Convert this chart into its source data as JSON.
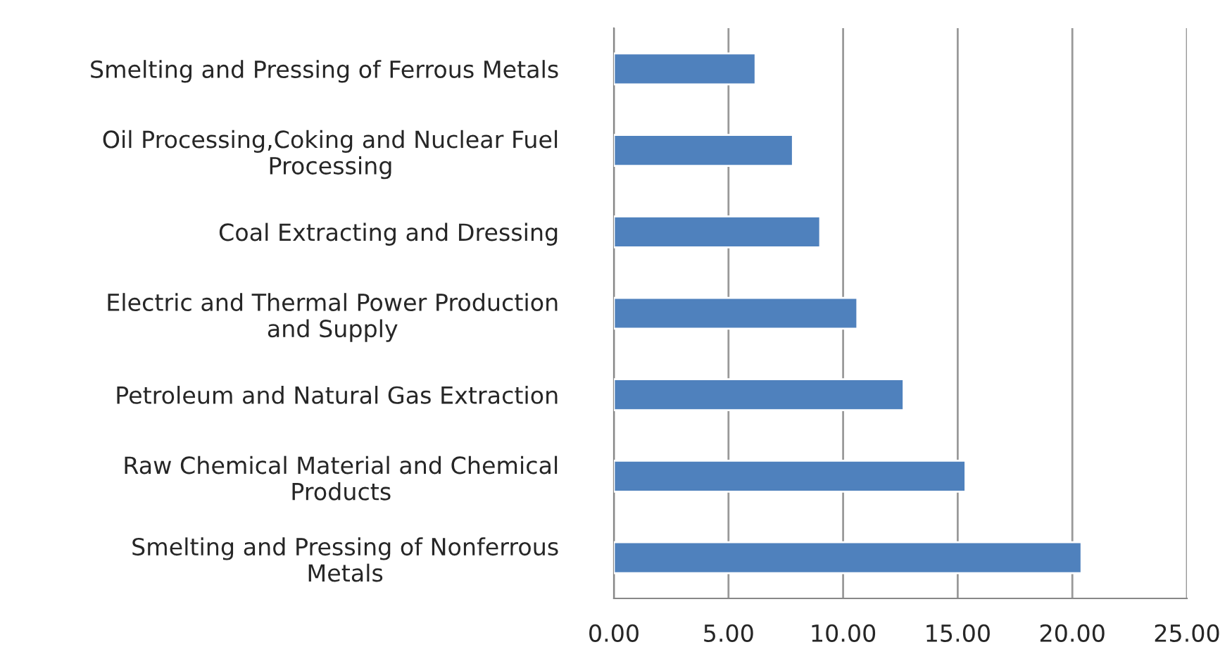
{
  "chart_data": {
    "type": "bar",
    "orientation": "horizontal",
    "categories": [
      "Smelting and Pressing of Ferrous Metals",
      "Oil Processing,Coking and Nuclear Fuel\nProcessing",
      "Coal Extracting and Dressing",
      "Electric and Thermal Power Production\nand Supply",
      "Petroleum and Natural Gas Extraction",
      "Raw Chemical Material and Chemical\nProducts",
      "Smelting and Pressing of Nonferrous\nMetals"
    ],
    "values": [
      6.18,
      7.81,
      9.0,
      10.62,
      12.64,
      15.34,
      20.4
    ],
    "color": "#4f81bd",
    "xlim": [
      0,
      25
    ],
    "xticks": [
      {
        "value": 0,
        "label": "0.00"
      },
      {
        "value": 5,
        "label": "5.00"
      },
      {
        "value": 10,
        "label": "10.00"
      },
      {
        "value": 15,
        "label": "15.00"
      },
      {
        "value": 20,
        "label": "20.00"
      },
      {
        "value": 25,
        "label": "25.00"
      }
    ],
    "grid": "x"
  }
}
